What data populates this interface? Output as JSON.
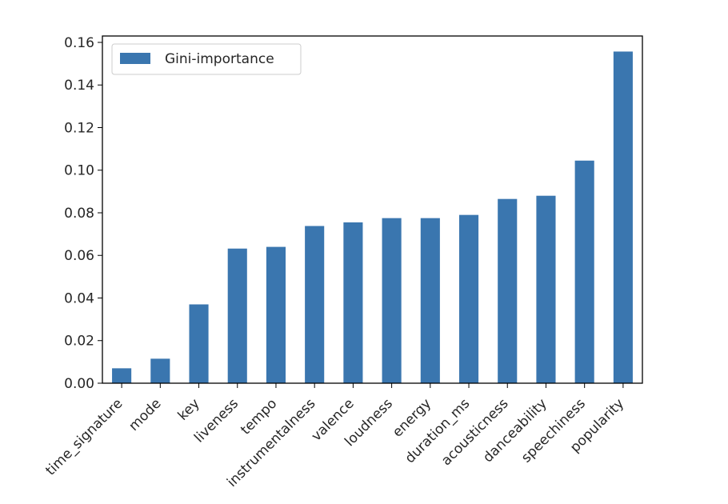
{
  "chart_data": {
    "type": "bar",
    "categories": [
      "time_signature",
      "mode",
      "key",
      "liveness",
      "tempo",
      "instrumentalness",
      "valence",
      "loudness",
      "energy",
      "duration_ms",
      "acousticness",
      "danceability",
      "speechiness",
      "popularity"
    ],
    "series": [
      {
        "name": "Gini-importance",
        "values": [
          0.007,
          0.0115,
          0.037,
          0.0632,
          0.064,
          0.0738,
          0.0755,
          0.0775,
          0.0775,
          0.079,
          0.0865,
          0.088,
          0.1045,
          0.1557
        ],
        "color": "#3a76af"
      }
    ],
    "title": "",
    "xlabel": "",
    "ylabel": "",
    "ylim": [
      0,
      0.163
    ],
    "yticks": [
      "0.00",
      "0.02",
      "0.04",
      "0.06",
      "0.08",
      "0.10",
      "0.12",
      "0.14",
      "0.16"
    ],
    "x_tick_rotation_deg": 45,
    "grid": false,
    "legend_position": "upper-left"
  }
}
